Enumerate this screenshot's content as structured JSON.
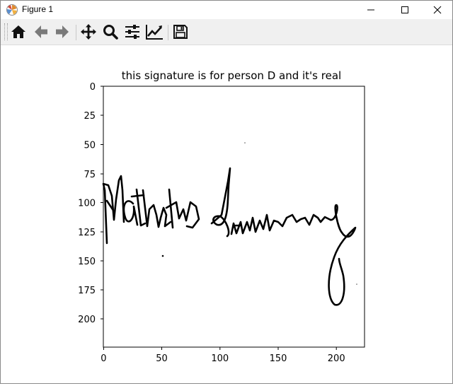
{
  "window": {
    "title": "Figure 1",
    "controls": {
      "minimize": "minimize-icon",
      "maximize": "maximize-icon",
      "close": "close-icon"
    }
  },
  "toolbar": {
    "buttons": [
      {
        "name": "home",
        "icon": "home-icon"
      },
      {
        "name": "back",
        "icon": "arrow-left-icon"
      },
      {
        "name": "forward",
        "icon": "arrow-right-icon"
      },
      {
        "name": "pan",
        "icon": "move-icon"
      },
      {
        "name": "zoom",
        "icon": "magnifier-icon"
      },
      {
        "name": "configure-subplots",
        "icon": "sliders-icon"
      },
      {
        "name": "edit-axis",
        "icon": "line-chart-icon"
      },
      {
        "name": "save",
        "icon": "floppy-disk-icon"
      }
    ]
  },
  "plot": {
    "title": "this signature is for person D and it's  real",
    "x_ticks": [
      "0",
      "50",
      "100",
      "150",
      "200"
    ],
    "y_ticks": [
      "0",
      "25",
      "50",
      "75",
      "100",
      "125",
      "150",
      "175",
      "200"
    ],
    "image_content": "handwritten signature",
    "signature_text": "Matthew Sweeney",
    "colors": {
      "ink": "#000000",
      "background": "#ffffff"
    }
  }
}
